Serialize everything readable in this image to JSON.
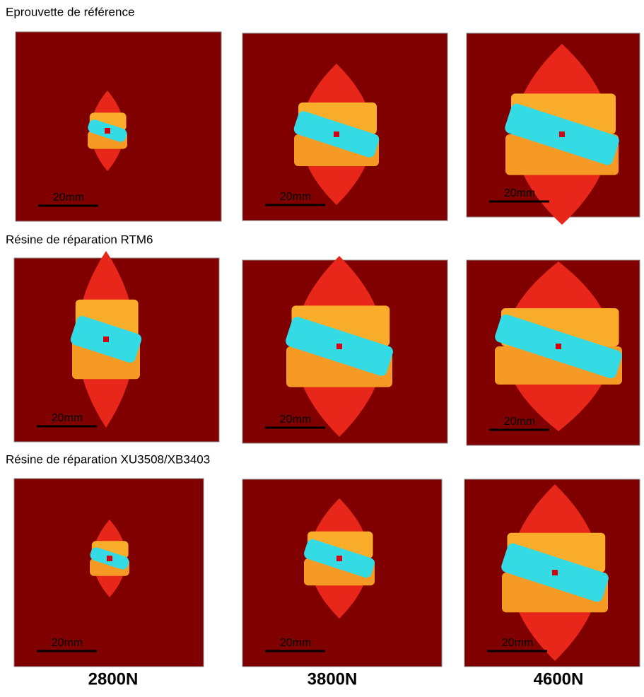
{
  "rows": [
    {
      "title": "Eprouvette de référence",
      "panels": [
        {
          "scale_label": "20mm"
        },
        {
          "scale_label": "20mm"
        },
        {
          "scale_label": "20mm"
        }
      ]
    },
    {
      "title": "Résine de réparation RTM6",
      "panels": [
        {
          "scale_label": "20mm"
        },
        {
          "scale_label": "20mm"
        },
        {
          "scale_label": "20mm"
        }
      ]
    },
    {
      "title": "Résine de réparation XU3508/XB3403",
      "panels": [
        {
          "scale_label": "20mm"
        },
        {
          "scale_label": "20mm"
        },
        {
          "scale_label": "20mm"
        }
      ]
    }
  ],
  "columns": [
    "2800N",
    "3800N",
    "4600N"
  ]
}
